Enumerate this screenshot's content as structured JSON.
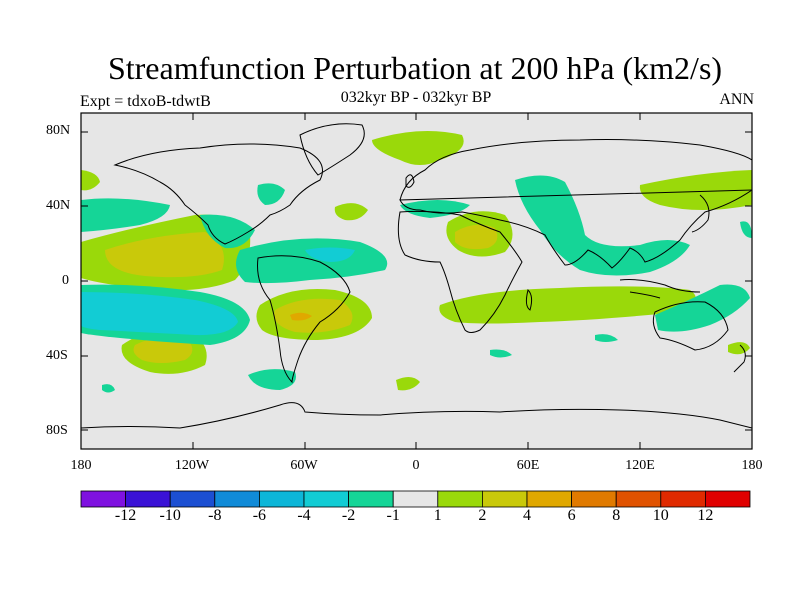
{
  "title": "Streamfunction Perturbation at 200 hPa (km2/s)",
  "subtitle_left": "Expt = tdxoB-tdwtB",
  "subtitle_center": "032kyr BP - 032kyr BP",
  "subtitle_right": "ANN",
  "lat_labels": [
    "80N",
    "40N",
    "0",
    "40S",
    "80S"
  ],
  "lon_labels": [
    "180",
    "120W",
    "60W",
    "0",
    "60E",
    "120E",
    "180"
  ],
  "colorbar": {
    "colors": [
      "#7f12e0",
      "#3a12d6",
      "#1c4fd2",
      "#118bd8",
      "#0db6d8",
      "#12ccd4",
      "#15d597",
      "#e6e6e6",
      "#9ad90a",
      "#c9c90a",
      "#e0a800",
      "#e07a00",
      "#e05200",
      "#e02a00",
      "#e00000"
    ],
    "labels": [
      "-12",
      "-10",
      "-8",
      "-6",
      "-4",
      "-2",
      "-1",
      "1",
      "2",
      "4",
      "6",
      "8",
      "10",
      "12"
    ]
  },
  "colors": {
    "background": "#e6e6e6",
    "pos1": "#9ad90a",
    "pos2": "#c9c90a",
    "pos3": "#e0a800",
    "neg1": "#15d597",
    "neg2": "#12ccd4"
  }
}
